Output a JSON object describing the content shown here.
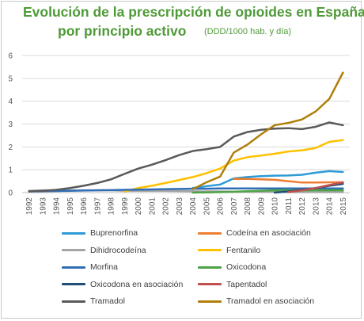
{
  "header": {
    "title_line1": "Evolución de la prescripción de opioides en España,",
    "title_line2": "por principio activo",
    "units": "(DDD/1000 hab. y día)"
  },
  "chart_data": {
    "type": "line",
    "title": "Evolución de la prescripción de opioides en España, por principio activo",
    "subtitle": "(DDD/1000 hab. y día)",
    "xlabel": "",
    "ylabel": "",
    "ylim": [
      0,
      6
    ],
    "yticks": [
      0,
      1,
      2,
      3,
      4,
      5,
      6
    ],
    "grid": "horizontal",
    "legend_position": "bottom",
    "x": [
      "1992",
      "1993",
      "1994",
      "1995",
      "1996",
      "1997",
      "1998",
      "1999",
      "2000",
      "2001",
      "2002",
      "2003",
      "2004",
      "2005",
      "2006",
      "2007",
      "2008",
      "2009",
      "2010",
      "2011",
      "2012",
      "2013",
      "2014",
      "2015"
    ],
    "series": [
      {
        "name": "Buprenorfina",
        "color": "#2e9bd6",
        "values": [
          null,
          null,
          null,
          null,
          null,
          null,
          null,
          null,
          null,
          null,
          null,
          null,
          0.2,
          0.28,
          0.35,
          0.62,
          0.68,
          0.72,
          0.74,
          0.75,
          0.78,
          0.87,
          0.94,
          0.9
        ]
      },
      {
        "name": "Codeína en asociación",
        "color": "#ed7d31",
        "values": [
          null,
          null,
          null,
          null,
          null,
          null,
          null,
          null,
          null,
          null,
          null,
          null,
          null,
          null,
          null,
          0.6,
          0.6,
          0.58,
          0.56,
          0.5,
          0.44,
          0.44,
          0.45,
          0.45
        ]
      },
      {
        "name": "Dihidrocodeína",
        "color": "#a5a5a5",
        "values": [
          0.08,
          0.1,
          0.1,
          0.1,
          0.1,
          0.1,
          0.1,
          0.08,
          0.08,
          0.08,
          0.08,
          0.07,
          0.06,
          0.05,
          0.05,
          0.04,
          0.04,
          0.03,
          0.03,
          0.02,
          0.02,
          0.02,
          0.02,
          0.02
        ]
      },
      {
        "name": "Fentanilo",
        "color": "#ffc000",
        "values": [
          null,
          null,
          null,
          null,
          null,
          null,
          null,
          0.05,
          0.2,
          0.3,
          0.42,
          0.55,
          0.68,
          0.85,
          1.05,
          1.4,
          1.55,
          1.62,
          1.7,
          1.8,
          1.85,
          1.95,
          2.22,
          2.3
        ]
      },
      {
        "name": "Morfina",
        "color": "#2f6eb5",
        "values": [
          0.05,
          0.06,
          0.07,
          0.08,
          0.09,
          0.1,
          0.11,
          0.12,
          0.13,
          0.14,
          0.15,
          0.16,
          0.17,
          0.17,
          0.18,
          0.18,
          0.18,
          0.18,
          0.18,
          0.18,
          0.18,
          0.18,
          0.18,
          0.18
        ]
      },
      {
        "name": "Oxicodona",
        "color": "#4da346",
        "values": [
          null,
          null,
          null,
          null,
          null,
          null,
          null,
          null,
          null,
          null,
          null,
          null,
          0.0,
          0.01,
          0.02,
          0.04,
          0.06,
          0.08,
          0.1,
          0.1,
          0.1,
          0.1,
          0.1,
          0.1
        ]
      },
      {
        "name": "Oxicodona en asociación",
        "color": "#1f4e79",
        "values": [
          null,
          null,
          null,
          null,
          null,
          null,
          null,
          null,
          null,
          null,
          null,
          null,
          null,
          null,
          null,
          null,
          null,
          null,
          0.0,
          0.05,
          0.12,
          0.2,
          0.3,
          0.38
        ]
      },
      {
        "name": "Tapentadol",
        "color": "#c0504d",
        "values": [
          null,
          null,
          null,
          null,
          null,
          null,
          null,
          null,
          null,
          null,
          null,
          null,
          null,
          null,
          null,
          null,
          null,
          null,
          null,
          0.02,
          0.1,
          0.2,
          0.33,
          0.45
        ]
      },
      {
        "name": "Tramadol",
        "color": "#595959",
        "values": [
          0.05,
          0.08,
          0.12,
          0.2,
          0.3,
          0.42,
          0.58,
          0.82,
          1.05,
          1.22,
          1.42,
          1.64,
          1.82,
          1.9,
          2.0,
          2.45,
          2.65,
          2.75,
          2.8,
          2.82,
          2.78,
          2.88,
          3.07,
          2.95
        ]
      },
      {
        "name": "Tramadol en asociación",
        "color": "#b07f0a",
        "values": [
          null,
          null,
          null,
          null,
          null,
          null,
          null,
          null,
          null,
          null,
          null,
          null,
          0.15,
          0.45,
          0.7,
          1.75,
          2.1,
          2.55,
          2.95,
          3.05,
          3.2,
          3.55,
          4.1,
          5.25
        ]
      }
    ]
  }
}
